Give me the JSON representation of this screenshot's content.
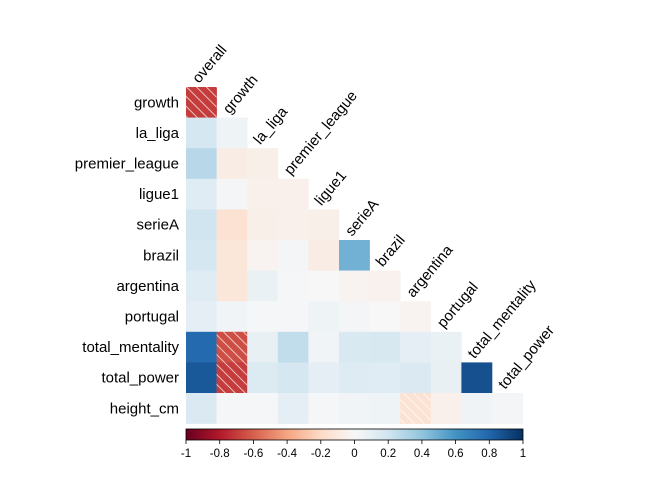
{
  "chart_data": {
    "type": "heatmap",
    "subtype": "correlation-lower-triangle",
    "variables": [
      "overall",
      "growth",
      "la_liga",
      "premier_league",
      "ligue1",
      "serieA",
      "brazil",
      "argentina",
      "portugal",
      "total_mentality",
      "total_power",
      "height_cm"
    ],
    "row_labels": [
      "growth",
      "la_liga",
      "premier_league",
      "ligue1",
      "serieA",
      "brazil",
      "argentina",
      "portugal",
      "total_mentality",
      "total_power",
      "height_cm"
    ],
    "column_labels": [
      "overall",
      "growth",
      "la_liga",
      "premier_league",
      "ligue1",
      "serieA",
      "brazil",
      "argentina",
      "portugal",
      "total_mentality",
      "total_power"
    ],
    "matrix": [
      [
        -0.7
      ],
      [
        0.18,
        0.05
      ],
      [
        0.28,
        -0.08,
        -0.06
      ],
      [
        0.12,
        0.02,
        -0.05,
        -0.05
      ],
      [
        0.2,
        -0.15,
        -0.06,
        -0.05,
        -0.06
      ],
      [
        0.18,
        -0.12,
        -0.03,
        0.02,
        -0.08,
        0.48
      ],
      [
        0.12,
        -0.12,
        0.07,
        0.01,
        0.0,
        -0.03,
        -0.04
      ],
      [
        0.1,
        0.03,
        0.01,
        0.01,
        0.05,
        0.02,
        0.0,
        -0.03
      ],
      [
        0.78,
        -0.65,
        0.08,
        0.25,
        0.03,
        0.16,
        0.17,
        0.1,
        0.07
      ],
      [
        0.85,
        -0.7,
        0.14,
        0.18,
        0.1,
        0.13,
        0.12,
        0.15,
        0.08,
        0.88
      ],
      [
        0.15,
        0.01,
        0.01,
        0.1,
        0.01,
        0.03,
        0.05,
        -0.15,
        -0.05,
        0.04,
        0.02
      ]
    ],
    "hatched_cells": [
      [
        0,
        0
      ],
      [
        8,
        1
      ],
      [
        9,
        1
      ],
      [
        10,
        7
      ]
    ],
    "colorbar": {
      "range": [
        -1,
        1
      ],
      "ticks": [
        "-1",
        "-0.8",
        "-0.6",
        "-0.4",
        "-0.2",
        "0",
        "0.2",
        "0.4",
        "0.6",
        "0.8",
        "1"
      ],
      "colormap": [
        "#67001f",
        "#b2182b",
        "#d6604d",
        "#f4a582",
        "#fddbc7",
        "#f7f7f7",
        "#d1e5f0",
        "#92c5de",
        "#4393c3",
        "#2166ac",
        "#053061"
      ]
    },
    "grid": false
  }
}
